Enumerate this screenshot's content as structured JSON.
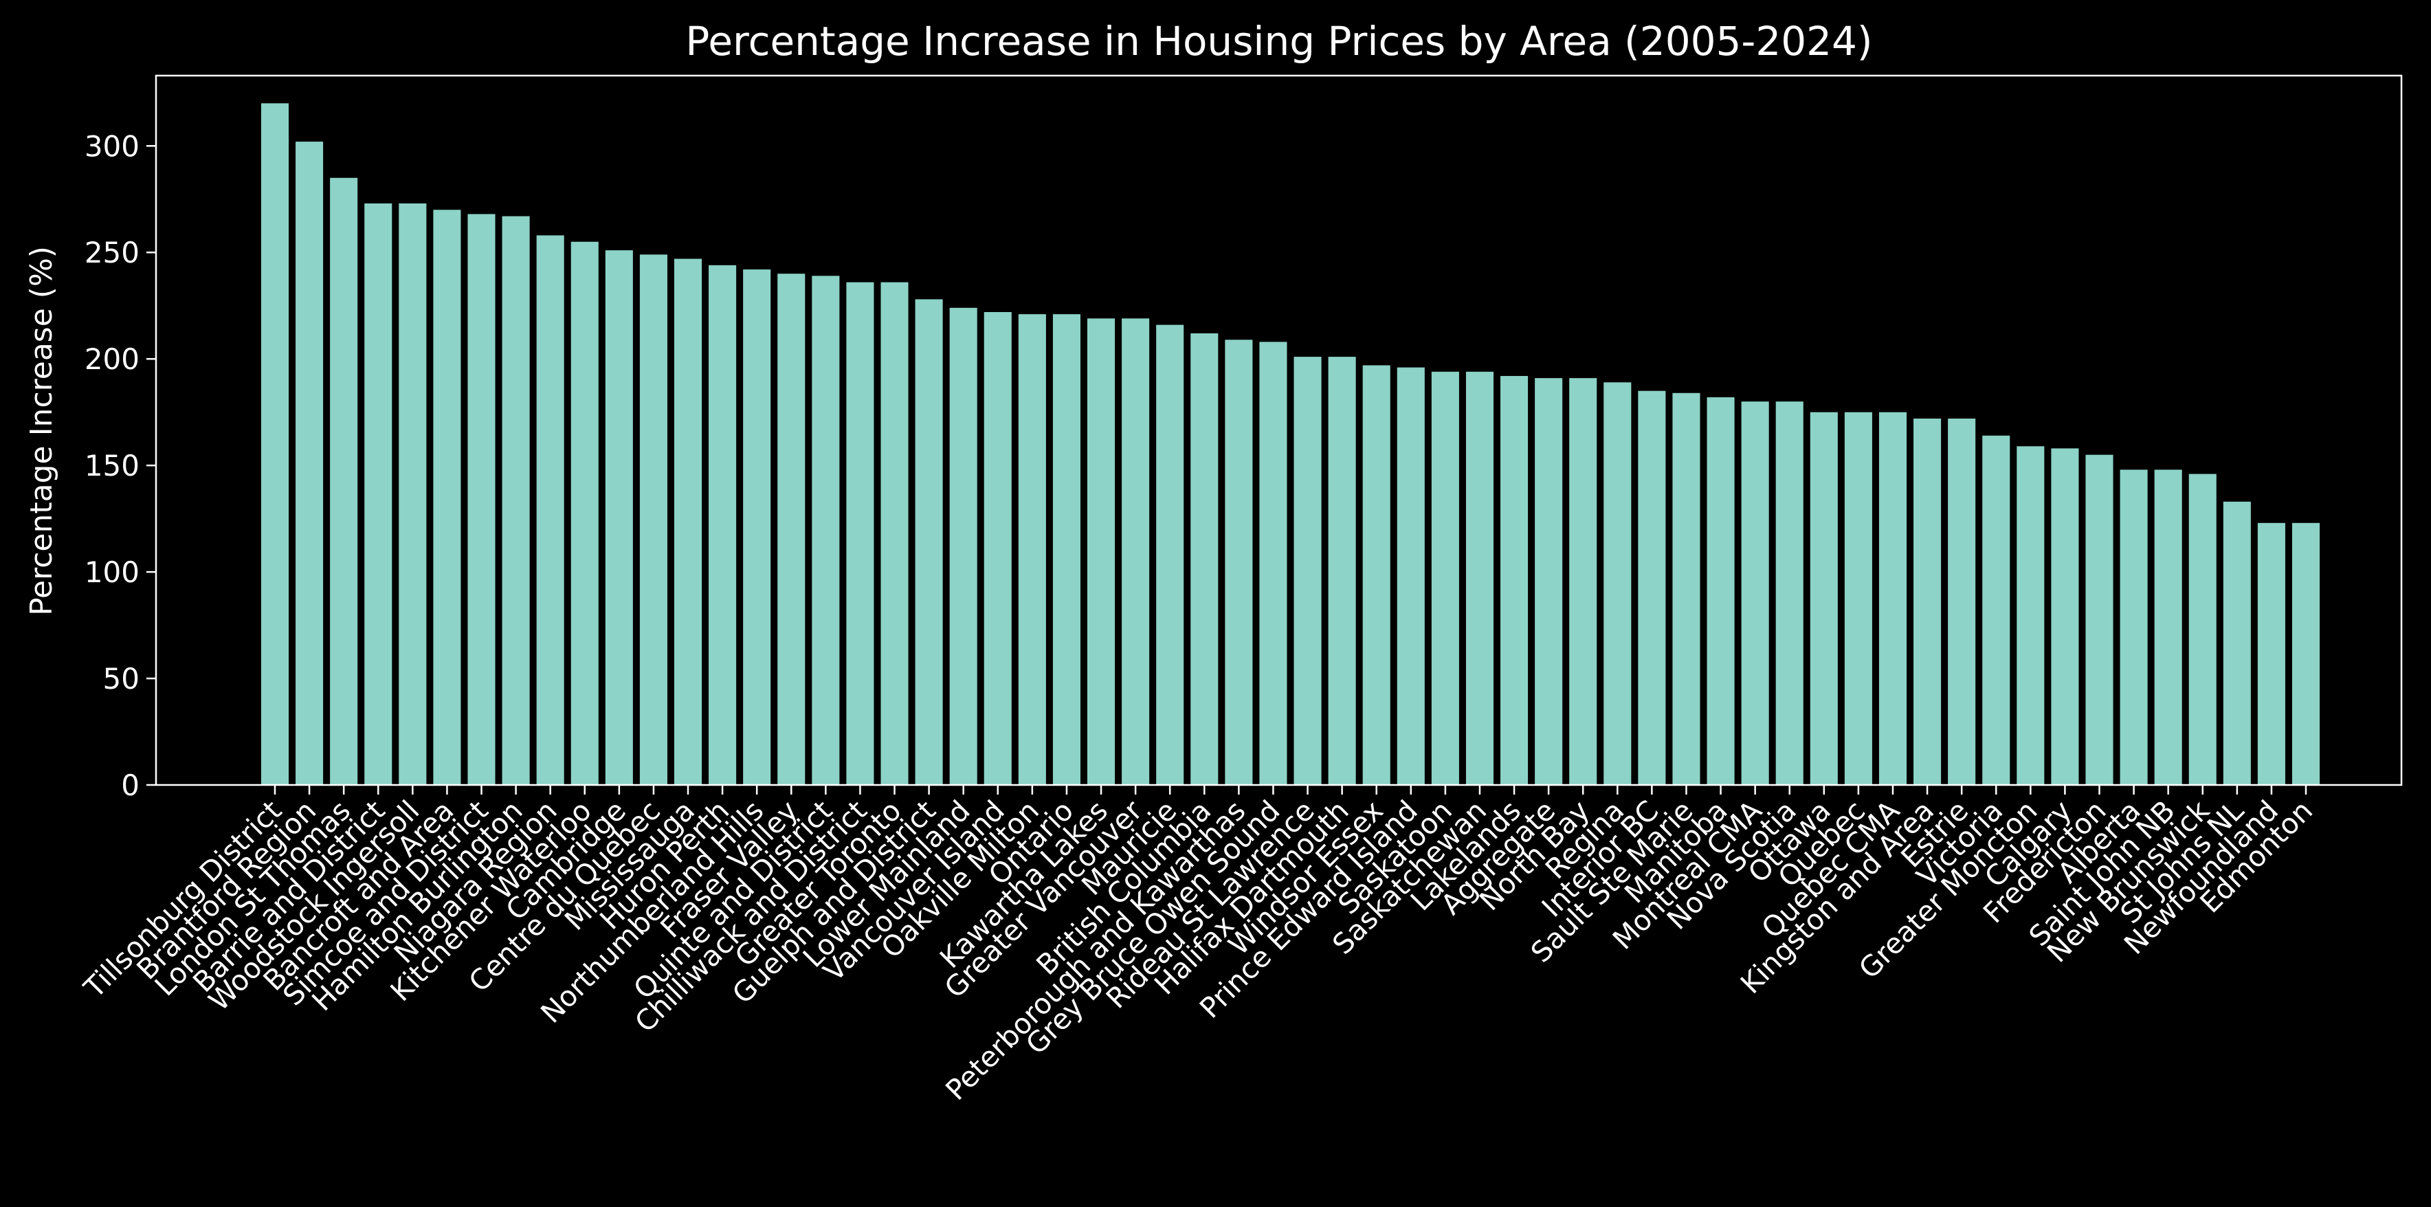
{
  "chart_data": {
    "type": "bar",
    "title": "Percentage Increase in Housing Prices by Area (2005-2024)",
    "xlabel": "",
    "ylabel": "Percentage Increase (%)",
    "ylim": [
      0,
      333
    ],
    "yticks": [
      0,
      50,
      100,
      150,
      200,
      250,
      300
    ],
    "grid": false,
    "bar_color": "#8dd3c7",
    "background_color": "#000000",
    "categories": [
      "Tillsonburg District",
      "Brantford Region",
      "London St Thomas",
      "Barrie and District",
      "Woodstock Ingersoll",
      "Bancroft and Area",
      "Simcoe and District",
      "Hamilton Burlington",
      "Niagara Region",
      "Kitchener Waterloo",
      "Cambridge",
      "Centre du Quebec",
      "Mississauga",
      "Huron Perth",
      "Northumberland Hills",
      "Fraser Valley",
      "Quinte and District",
      "Chilliwack and District",
      "Greater Toronto",
      "Guelph and District",
      "Lower Mainland",
      "Vancouver Island",
      "Oakville Milton",
      "Ontario",
      "Kawartha Lakes",
      "Greater Vancouver",
      "Mauricie",
      "British Columbia",
      "Peterborough and Kawarthas",
      "Grey Bruce Owen Sound",
      "Rideau St Lawrence",
      "Halifax Dartmouth",
      "Windsor Essex",
      "Prince Edward Island",
      "Saskatoon",
      "Saskatchewan",
      "Lakelands",
      "Aggregate",
      "North Bay",
      "Regina",
      "Interior BC",
      "Sault Ste Marie",
      "Manitoba",
      "Montreal CMA",
      "Nova Scotia",
      "Ottawa",
      "Quebec",
      "Quebec CMA",
      "Kingston and Area",
      "Estrie",
      "Victoria",
      "Greater Moncton",
      "Calgary",
      "Fredericton",
      "Alberta",
      "Saint John NB",
      "New Brunswick",
      "St Johns NL",
      "Newfoundland",
      "Edmonton"
    ],
    "values": [
      320,
      302,
      285,
      273,
      273,
      270,
      268,
      267,
      258,
      255,
      251,
      249,
      247,
      244,
      242,
      240,
      239,
      236,
      236,
      228,
      224,
      222,
      221,
      221,
      219,
      219,
      216,
      212,
      209,
      208,
      201,
      201,
      197,
      196,
      194,
      194,
      192,
      191,
      191,
      189,
      185,
      184,
      182,
      180,
      180,
      175,
      175,
      175,
      172,
      172,
      164,
      159,
      158,
      155,
      148,
      148,
      146,
      133,
      123,
      123
    ]
  }
}
